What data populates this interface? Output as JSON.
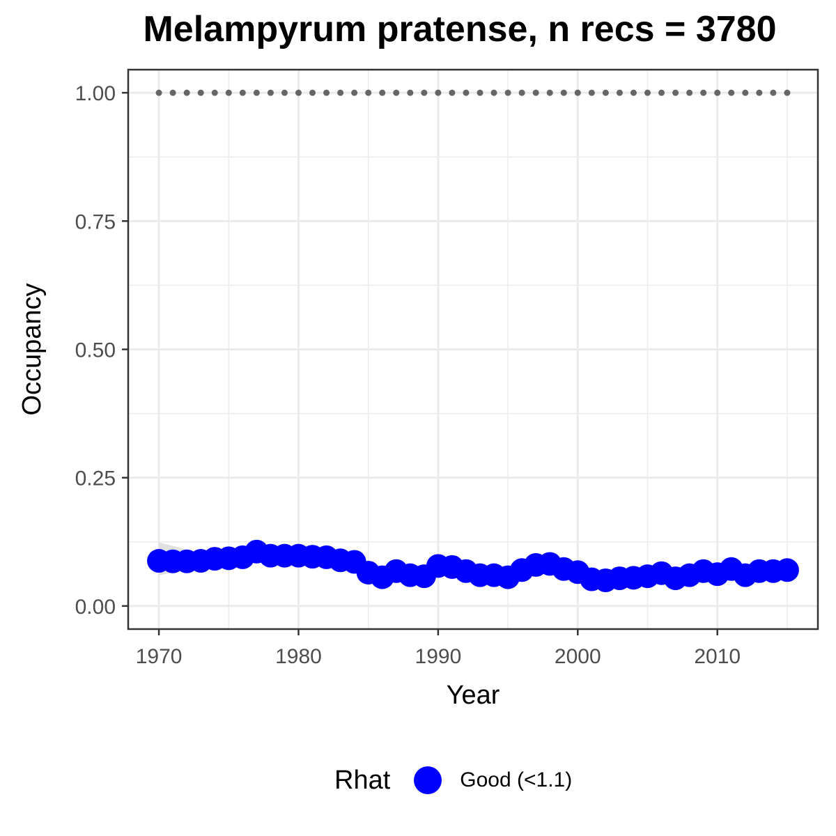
{
  "chart_data": {
    "type": "line",
    "title": "Melampyrum pratense, n recs = 3780",
    "xlabel": "Year",
    "ylabel": "Occupancy",
    "xlim": [
      1967.8,
      1016.8
    ],
    "x_ticks": [
      "1970",
      "1980",
      "1990",
      "2000",
      "2010"
    ],
    "x_tick_values": [
      1970,
      1980,
      1990,
      2000,
      2010
    ],
    "ylim": [
      -0.045,
      1.045
    ],
    "y_ticks": [
      "0.00",
      "0.25",
      "0.50",
      "0.75",
      "1.00"
    ],
    "y_tick_values": [
      0,
      0.25,
      0.5,
      0.75,
      1.0
    ],
    "grid": true,
    "legend": {
      "title": "Rhat",
      "placement": "bottom"
    },
    "colors": {
      "series": "#0000ff",
      "reference": "#666666",
      "grid": "#ebebeb",
      "ribbon": "#d9d9d9"
    },
    "series": [
      {
        "name": "Good (<1.1)",
        "x": [
          1970,
          1971,
          1972,
          1973,
          1974,
          1975,
          1976,
          1977,
          1978,
          1979,
          1980,
          1981,
          1982,
          1983,
          1984,
          1985,
          1986,
          1987,
          1988,
          1989,
          1990,
          1991,
          1992,
          1993,
          1994,
          1995,
          1996,
          1997,
          1998,
          1999,
          2000,
          2001,
          2002,
          2003,
          2004,
          2005,
          2006,
          2007,
          2008,
          2009,
          2010,
          2011,
          2012,
          2013,
          2014,
          2015
        ],
        "y": [
          0.088,
          0.087,
          0.087,
          0.088,
          0.092,
          0.093,
          0.095,
          0.106,
          0.098,
          0.098,
          0.098,
          0.096,
          0.095,
          0.089,
          0.086,
          0.065,
          0.056,
          0.068,
          0.06,
          0.058,
          0.078,
          0.076,
          0.068,
          0.06,
          0.06,
          0.056,
          0.07,
          0.08,
          0.082,
          0.072,
          0.066,
          0.052,
          0.05,
          0.054,
          0.055,
          0.058,
          0.064,
          0.054,
          0.06,
          0.068,
          0.062,
          0.072,
          0.06,
          0.068,
          0.068,
          0.07
        ]
      }
    ],
    "reference_series": {
      "x": [
        1970,
        1971,
        1972,
        1973,
        1974,
        1975,
        1976,
        1977,
        1978,
        1979,
        1980,
        1981,
        1982,
        1983,
        1984,
        1985,
        1986,
        1987,
        1988,
        1989,
        1990,
        1991,
        1992,
        1993,
        1994,
        1995,
        1996,
        1997,
        1998,
        1999,
        2000,
        2001,
        2002,
        2003,
        2004,
        2005,
        2006,
        2007,
        2008,
        2009,
        2010,
        2011,
        2012,
        2013,
        2014,
        2015
      ],
      "y": 1.0
    }
  }
}
